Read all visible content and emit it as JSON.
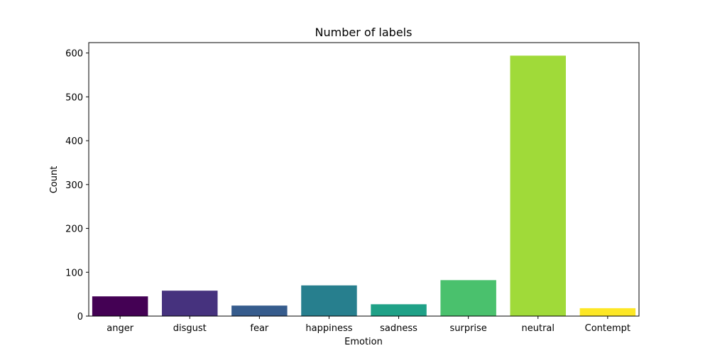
{
  "chart_data": {
    "type": "bar",
    "title": "Number of labels",
    "xlabel": "Emotion",
    "ylabel": "Count",
    "categories": [
      "anger",
      "disgust",
      "fear",
      "happiness",
      "sadness",
      "surprise",
      "neutral",
      "Contempt"
    ],
    "values": [
      45,
      58,
      24,
      70,
      27,
      82,
      594,
      18
    ],
    "colors": [
      "#440154",
      "#46327e",
      "#365c8d",
      "#277f8e",
      "#1fa187",
      "#4ac16d",
      "#a0da39",
      "#fde725"
    ],
    "ylim": [
      0,
      623.7
    ],
    "yticks": [
      0,
      100,
      200,
      300,
      400,
      500,
      600
    ],
    "grid": false
  }
}
